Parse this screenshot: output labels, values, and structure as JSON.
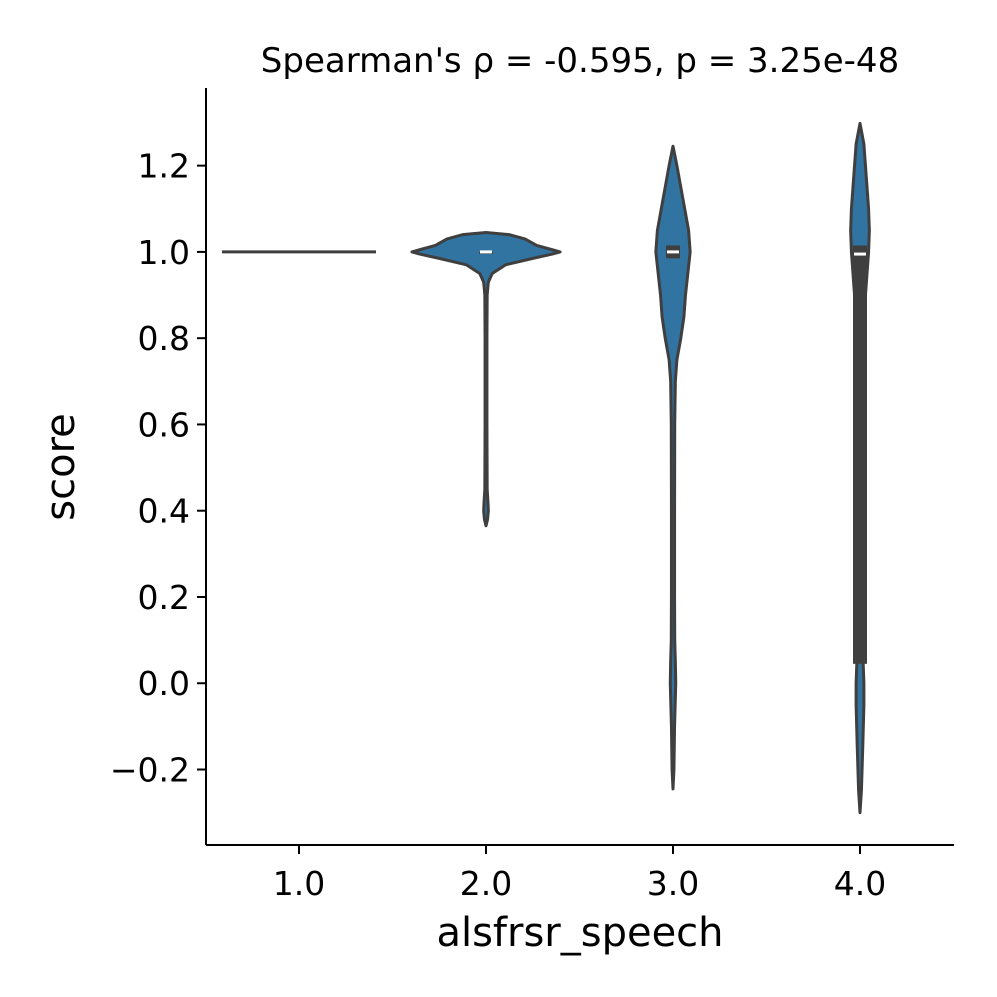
{
  "chart_data": {
    "type": "violin",
    "title": "Spearman's ρ = -0.595, p = 3.25e-48",
    "xlabel": "alsfrsr_speech",
    "ylabel": "score",
    "categories": [
      "1.0",
      "2.0",
      "3.0",
      "4.0"
    ],
    "yticks": [
      -0.2,
      0.0,
      0.2,
      0.4,
      0.6,
      0.8,
      1.0,
      1.2
    ],
    "ytick_labels": [
      "−0.2",
      "0.0",
      "0.2",
      "0.4",
      "0.6",
      "0.8",
      "1.0",
      "1.2"
    ],
    "ylim": [
      -0.375,
      1.38
    ],
    "grid": false,
    "fill_color": "#3274a1",
    "edge_color": "#3f3f3f",
    "violins": [
      {
        "category": "1.0",
        "degenerate_value": 1.0,
        "median": 1.0
      },
      {
        "category": "2.0",
        "profile": [
          [
            0.365,
            0
          ],
          [
            0.38,
            0.02
          ],
          [
            0.4,
            0.03
          ],
          [
            0.42,
            0.025
          ],
          [
            0.45,
            0.015
          ],
          [
            0.6,
            0.012
          ],
          [
            0.8,
            0.012
          ],
          [
            0.9,
            0.015
          ],
          [
            0.93,
            0.03
          ],
          [
            0.95,
            0.08
          ],
          [
            0.97,
            0.25
          ],
          [
            0.985,
            0.6
          ],
          [
            0.995,
            0.85
          ],
          [
            1.0,
            0.95
          ],
          [
            1.005,
            0.85
          ],
          [
            1.015,
            0.65
          ],
          [
            1.03,
            0.5
          ],
          [
            1.04,
            0.3
          ],
          [
            1.045,
            0
          ]
        ],
        "q1": 1.0,
        "median": 1.0,
        "q3": 1.0
      },
      {
        "category": "3.0",
        "profile": [
          [
            -0.245,
            0
          ],
          [
            -0.2,
            0.012
          ],
          [
            -0.1,
            0.02
          ],
          [
            0.0,
            0.035
          ],
          [
            0.05,
            0.03
          ],
          [
            0.1,
            0.022
          ],
          [
            0.2,
            0.02
          ],
          [
            0.4,
            0.02
          ],
          [
            0.6,
            0.022
          ],
          [
            0.7,
            0.03
          ],
          [
            0.75,
            0.05
          ],
          [
            0.8,
            0.1
          ],
          [
            0.85,
            0.14
          ],
          [
            0.9,
            0.16
          ],
          [
            0.95,
            0.19
          ],
          [
            1.0,
            0.22
          ],
          [
            1.05,
            0.2
          ],
          [
            1.1,
            0.15
          ],
          [
            1.15,
            0.1
          ],
          [
            1.2,
            0.05
          ],
          [
            1.245,
            0
          ]
        ],
        "q1": 0.985,
        "median": 1.0,
        "q3": 1.015
      },
      {
        "category": "4.0",
        "profile": [
          [
            -0.3,
            0
          ],
          [
            -0.25,
            0.018
          ],
          [
            -0.15,
            0.035
          ],
          [
            -0.05,
            0.05
          ],
          [
            0.0,
            0.05
          ],
          [
            0.05,
            0.04
          ],
          [
            0.3,
            0.035
          ],
          [
            0.6,
            0.04
          ],
          [
            0.85,
            0.05
          ],
          [
            0.9,
            0.07
          ],
          [
            0.95,
            0.09
          ],
          [
            1.0,
            0.11
          ],
          [
            1.05,
            0.12
          ],
          [
            1.1,
            0.11
          ],
          [
            1.15,
            0.09
          ],
          [
            1.2,
            0.07
          ],
          [
            1.25,
            0.05
          ],
          [
            1.298,
            0
          ]
        ],
        "q1": 0.045,
        "median": 0.995,
        "q3": 1.015
      }
    ]
  }
}
